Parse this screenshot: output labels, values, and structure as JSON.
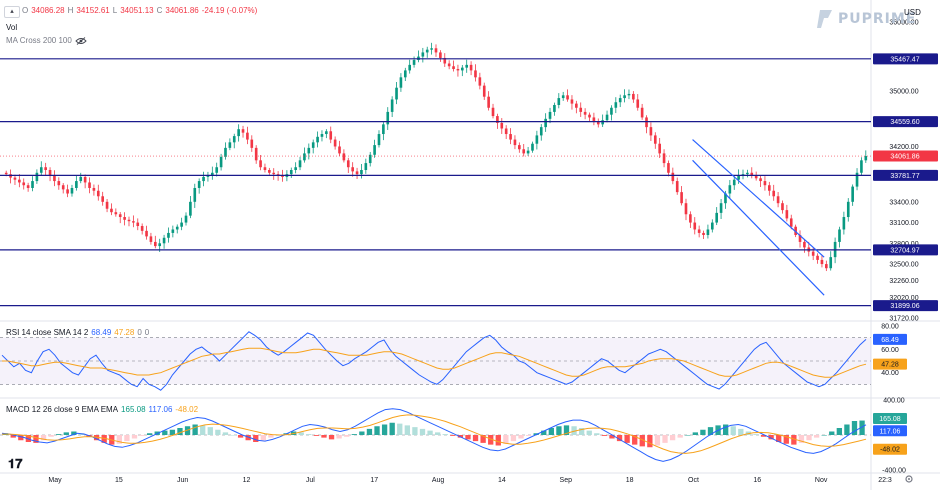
{
  "header": {
    "ohlc": {
      "open_label": "O",
      "open": "34086.28",
      "high_label": "H",
      "high": "34152.61",
      "low_label": "L",
      "low": "34051.13",
      "close_label": "C",
      "close": "34061.86",
      "change": "-24.19 (-0.07%)"
    },
    "vol_label": "Vol",
    "ma_label": "MA Cross 200 100",
    "collapse_icon": "chevron-up-icon",
    "eye_icon": "eye-hidden-icon"
  },
  "brand": {
    "name": "PUPRIME",
    "icon": "puprime-logo-icon"
  },
  "currency": "USD",
  "time_label": "22:3",
  "settings_icon": "gear-icon",
  "tv_logo": "tradingview-logo",
  "colors": {
    "up": "#089981",
    "down": "#f23645",
    "hline": "#1a1a8c",
    "rsi": "#2962ff",
    "rsi_sma": "#f7a21b",
    "macd": "#2962ff",
    "signal": "#f7a21b",
    "label_bg": "#1a1a8c",
    "current_price_bg": "#f23645",
    "rsi_tag": "#2962ff",
    "rsi_sma_tag": "#f7a21b"
  },
  "rsi_legend": {
    "label": "RSI 14 close SMA 14 2",
    "value": "68.49",
    "sma": "47.28",
    "extra1": "0",
    "extra2": "0"
  },
  "macd_legend": {
    "label": "MACD 12 26 close 9 EMA EMA",
    "hist": "165.08",
    "macd": "117.06",
    "signal": "-48.02"
  },
  "chart_data": {
    "type": "candlestick",
    "y_axis": {
      "ylim": [
        31720,
        36000
      ],
      "ticks": [
        "36000.00",
        "35500.00",
        "35000.00",
        "34200.00",
        "33400.00",
        "33100.00",
        "32800.00",
        "32500.00",
        "32260.00",
        "32020.00",
        "31720.00"
      ]
    },
    "x_axis": {
      "ticks": [
        "May",
        "15",
        "Jun",
        "12",
        "Jul",
        "17",
        "Aug",
        "14",
        "Sep",
        "18",
        "Oct",
        "16",
        "Nov",
        "22:3"
      ]
    },
    "horizontal_levels": [
      {
        "label": "35467.47",
        "value": 35467.47
      },
      {
        "label": "34559.60",
        "value": 34559.6
      },
      {
        "label": "33781.77",
        "value": 33781.77
      },
      {
        "label": "32704.97",
        "value": 32704.97
      },
      {
        "label": "31899.06",
        "value": 31899.06
      }
    ],
    "current_price": {
      "label": "34061.86",
      "value": 34061.86
    },
    "channel_lines": [
      {
        "from": [
          "Oct 16",
          34300
        ],
        "to": [
          "Oct 31",
          32600
        ]
      },
      {
        "from": [
          "Oct 16",
          34000
        ],
        "to": [
          "Oct 31",
          32050
        ]
      }
    ],
    "close_series": [
      33800,
      33750,
      33720,
      33680,
      33640,
      33600,
      33700,
      33820,
      33900,
      33860,
      33780,
      33700,
      33640,
      33580,
      33520,
      33600,
      33700,
      33760,
      33680,
      33600,
      33560,
      33480,
      33400,
      33300,
      33250,
      33220,
      33180,
      33140,
      33120,
      33100,
      33050,
      32980,
      32900,
      32820,
      32760,
      32800,
      32880,
      32950,
      33000,
      33040,
      33100,
      33200,
      33400,
      33600,
      33700,
      33760,
      33780,
      33820,
      33900,
      34050,
      34180,
      34260,
      34350,
      34450,
      34400,
      34300,
      34180,
      34000,
      33900,
      33860,
      33820,
      33800,
      33780,
      33760,
      33800,
      33860,
      33900,
      34000,
      34100,
      34180,
      34260,
      34340,
      34380,
      34420,
      34300,
      34200,
      34100,
      34000,
      33900,
      33840,
      33800,
      33860,
      33960,
      34080,
      34220,
      34380,
      34520,
      34700,
      34880,
      35050,
      35200,
      35300,
      35380,
      35450,
      35500,
      35560,
      35600,
      35620,
      35560,
      35480,
      35400,
      35360,
      35320,
      35300,
      35340,
      35380,
      35300,
      35200,
      35080,
      34920,
      34760,
      34640,
      34540,
      34460,
      34380,
      34300,
      34220,
      34160,
      34100,
      34140,
      34240,
      34360,
      34480,
      34600,
      34700,
      34800,
      34900,
      34940,
      34880,
      34820,
      34760,
      34700,
      34660,
      34620,
      34560,
      34520,
      34580,
      34660,
      34760,
      34840,
      34900,
      34940,
      34960,
      34880,
      34760,
      34620,
      34480,
      34360,
      34240,
      34100,
      33960,
      33820,
      33700,
      33540,
      33380,
      33220,
      33100,
      33000,
      32950,
      32920,
      33000,
      33100,
      33240,
      33380,
      33520,
      33640,
      33720,
      33780,
      33800,
      33820,
      33780,
      33740,
      33700,
      33640,
      33560,
      33480,
      33380,
      33280,
      33160,
      33040,
      32920,
      32820,
      32740,
      32680,
      32620,
      32560,
      32500,
      32440,
      32600,
      32820,
      33000,
      33180,
      33400,
      33620,
      33820,
      34000,
      34061.86
    ],
    "rsi": {
      "ylim": [
        20,
        80
      ],
      "ticks": [
        "80.00",
        "60.00",
        "40.00"
      ],
      "values": [
        55,
        50,
        45,
        48,
        42,
        40,
        50,
        58,
        60,
        55,
        48,
        44,
        40,
        38,
        45,
        52,
        55,
        48,
        42,
        40,
        38,
        34,
        30,
        28,
        35,
        30,
        28,
        25,
        30,
        38,
        44,
        50,
        56,
        60,
        62,
        58,
        55,
        50,
        55,
        60,
        65,
        70,
        75,
        72,
        68,
        62,
        58,
        55,
        58,
        62,
        66,
        70,
        74,
        72,
        66,
        60,
        55,
        50,
        46,
        48,
        52,
        55,
        58,
        62,
        66,
        68,
        60,
        54,
        50,
        46,
        42,
        38,
        35,
        32,
        30,
        34,
        40,
        46,
        52,
        58,
        62,
        66,
        70,
        72,
        68,
        62,
        58,
        55,
        50,
        48,
        44,
        40,
        38,
        36,
        34,
        32,
        30,
        32,
        36,
        40,
        44,
        48,
        52,
        50,
        46,
        42,
        40,
        44,
        48,
        52,
        56,
        58,
        60,
        58,
        54,
        50,
        46,
        42,
        38,
        34,
        30,
        28,
        26,
        30,
        36,
        42,
        48,
        54,
        60,
        64,
        66,
        60,
        54,
        48,
        44,
        40,
        36,
        32,
        30,
        28,
        30,
        35,
        40,
        46,
        52,
        58,
        64,
        68.49
      ],
      "sma_values": [
        50,
        50,
        49,
        48,
        47,
        46,
        46,
        47,
        48,
        49,
        49,
        48,
        47,
        46,
        45,
        44,
        44,
        44,
        43,
        42,
        41,
        40,
        39,
        38,
        38,
        38,
        39,
        40,
        42,
        44,
        46,
        48,
        50,
        52,
        54,
        55,
        56,
        56,
        57,
        58,
        59,
        60,
        61,
        61,
        61,
        60,
        59,
        58,
        57,
        57,
        57,
        58,
        59,
        60,
        60,
        59,
        58,
        57,
        56,
        55,
        55,
        55,
        55,
        56,
        57,
        58,
        58,
        57,
        56,
        54,
        52,
        50,
        48,
        46,
        44,
        43,
        43,
        44,
        46,
        48,
        50,
        52,
        54,
        56,
        57,
        57,
        56,
        55,
        54,
        52,
        50,
        48,
        46,
        44,
        42,
        40,
        38,
        37,
        37,
        38,
        40,
        42,
        44,
        45,
        45,
        45,
        45,
        46,
        47,
        48,
        50,
        51,
        52,
        52,
        52,
        51,
        50,
        48,
        46,
        44,
        42,
        40,
        38,
        37,
        37,
        38,
        40,
        42,
        44,
        46,
        48,
        49,
        49,
        48,
        46,
        44,
        42,
        40,
        38,
        37,
        36,
        36,
        38,
        40,
        42,
        44,
        46,
        47.28
      ]
    },
    "macd": {
      "ylim": [
        -400,
        400
      ],
      "ticks": [
        "400.00",
        "-400.00"
      ],
      "hist": [
        20,
        -30,
        -60,
        -80,
        -90,
        -60,
        -20,
        10,
        30,
        40,
        20,
        -20,
        -60,
        -90,
        -110,
        -100,
        -70,
        -40,
        -10,
        20,
        40,
        50,
        60,
        80,
        100,
        120,
        110,
        90,
        60,
        30,
        0,
        -30,
        -60,
        -80,
        -60,
        -30,
        0,
        20,
        40,
        30,
        10,
        -10,
        -30,
        -50,
        -40,
        -20,
        10,
        40,
        70,
        100,
        120,
        140,
        130,
        110,
        90,
        70,
        50,
        30,
        10,
        -10,
        -30,
        -50,
        -70,
        -90,
        -110,
        -120,
        -100,
        -70,
        -40,
        -10,
        20,
        50,
        80,
        100,
        110,
        100,
        80,
        50,
        20,
        -10,
        -40,
        -70,
        -90,
        -110,
        -130,
        -140,
        -120,
        -90,
        -60,
        -30,
        0,
        30,
        60,
        90,
        110,
        120,
        100,
        70,
        40,
        10,
        -20,
        -50,
        -80,
        -100,
        -110,
        -90,
        -60,
        -30,
        0,
        40,
        80,
        120,
        160,
        165.08
      ],
      "macd_line": [
        20,
        10,
        -10,
        -30,
        -60,
        -80,
        -90,
        -70,
        -40,
        -10,
        20,
        10,
        -20,
        -60,
        -100,
        -130,
        -140,
        -120,
        -90,
        -50,
        -10,
        30,
        70,
        110,
        150,
        180,
        200,
        190,
        160,
        120,
        80,
        40,
        0,
        -30,
        -60,
        -70,
        -50,
        -20,
        20,
        60,
        100,
        120,
        110,
        90,
        60,
        40,
        60,
        100,
        150,
        200,
        250,
        290,
        300,
        290,
        260,
        220,
        180,
        140,
        100,
        60,
        20,
        -20,
        -60,
        -100,
        -140,
        -170,
        -180,
        -160,
        -120,
        -80,
        -40,
        0,
        40,
        80,
        120,
        150,
        170,
        170,
        150,
        110,
        60,
        10,
        -40,
        -90,
        -140,
        -190,
        -240,
        -280,
        -300,
        -280,
        -240,
        -190,
        -130,
        -70,
        -10,
        40,
        80,
        110,
        120,
        100,
        60,
        20,
        -20,
        -60,
        -100,
        -140,
        -170,
        -200,
        -210,
        -190,
        -150,
        -100,
        -40,
        20,
        70,
        117.06
      ],
      "signal_line": [
        10,
        10,
        5,
        -5,
        -20,
        -40,
        -55,
        -60,
        -55,
        -45,
        -30,
        -20,
        -20,
        -30,
        -45,
        -65,
        -85,
        -95,
        -95,
        -85,
        -70,
        -50,
        -25,
        5,
        35,
        65,
        95,
        115,
        125,
        120,
        110,
        95,
        75,
        55,
        35,
        15,
        5,
        0,
        5,
        20,
        40,
        60,
        75,
        80,
        80,
        75,
        70,
        75,
        90,
        110,
        140,
        170,
        200,
        220,
        230,
        225,
        215,
        200,
        180,
        155,
        125,
        95,
        60,
        25,
        -10,
        -45,
        -75,
        -95,
        -105,
        -105,
        -95,
        -80,
        -60,
        -35,
        -10,
        15,
        40,
        60,
        75,
        80,
        75,
        65,
        45,
        20,
        -10,
        -45,
        -85,
        -125,
        -160,
        -190,
        -205,
        -210,
        -200,
        -180,
        -150,
        -115,
        -80,
        -45,
        -15,
        10,
        25,
        30,
        25,
        10,
        -10,
        -35,
        -60,
        -85,
        -110,
        -125,
        -130,
        -125,
        -110,
        -90,
        -70,
        -48.02
      ]
    }
  }
}
